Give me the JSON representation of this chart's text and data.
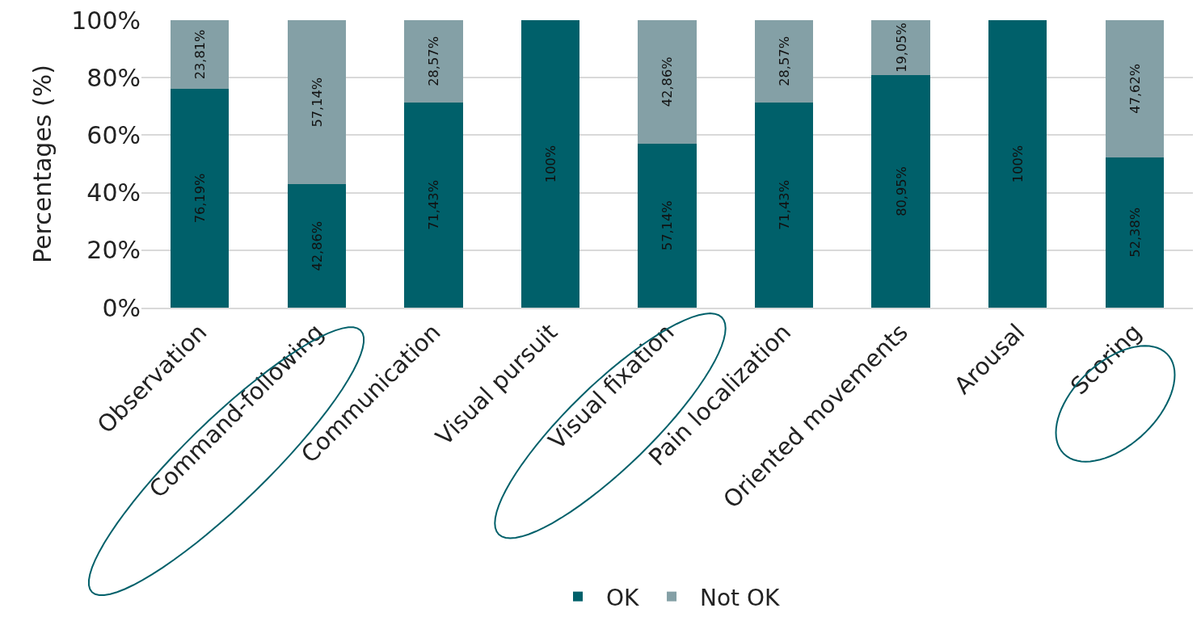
{
  "chart_data": {
    "type": "bar",
    "stacked": true,
    "ylabel": "Percentages (%)",
    "categories": [
      "Observation",
      "Command-following",
      "Communication",
      "Visual pursuit",
      "Visual fixation",
      "Pain localization",
      "Oriented movements",
      "Arousal",
      "Scoring"
    ],
    "series": [
      {
        "name": "OK",
        "color": "#00606a",
        "values": [
          76.19,
          42.86,
          71.43,
          100,
          57.14,
          71.43,
          80.95,
          100,
          52.38
        ],
        "value_labels": [
          "76,19%",
          "42,86%",
          "71,43%",
          "100%",
          "57,14%",
          "71,43%",
          "80,95%",
          "100%",
          "52,38%"
        ]
      },
      {
        "name": "Not OK",
        "color": "#84a0a6",
        "values": [
          23.81,
          57.14,
          28.57,
          0,
          42.86,
          28.57,
          19.05,
          0,
          47.62
        ],
        "value_labels": [
          "23,81%",
          "57,14%",
          "28,57%",
          null,
          "42,86%",
          "28,57%",
          "19,05%",
          null,
          "47,62%"
        ]
      }
    ],
    "ylim": [
      0,
      100
    ],
    "yticks": [
      {
        "value": 0,
        "label": "0%"
      },
      {
        "value": 20,
        "label": "20%"
      },
      {
        "value": 40,
        "label": "40%"
      },
      {
        "value": 60,
        "label": "60%"
      },
      {
        "value": 80,
        "label": "80%"
      },
      {
        "value": 100,
        "label": "100%"
      }
    ],
    "grid": "y",
    "legend": "bottom"
  }
}
